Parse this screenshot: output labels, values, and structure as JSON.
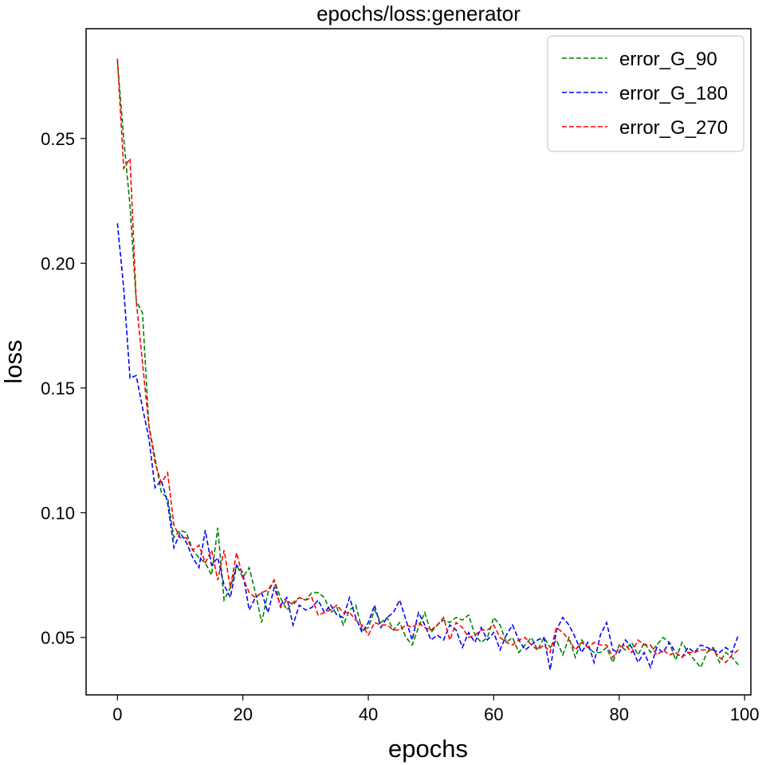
{
  "chart_data": {
    "type": "line",
    "title": "epochs/loss:generator",
    "xlabel": "epochs",
    "ylabel": "loss",
    "xlim": [
      -5,
      101
    ],
    "ylim": [
      0.027,
      0.294
    ],
    "xticks": [
      0,
      20,
      40,
      60,
      80,
      100
    ],
    "yticks": [
      0.05,
      0.1,
      0.15,
      0.2,
      0.25
    ],
    "xtick_labels": [
      "0",
      "20",
      "40",
      "60",
      "80",
      "100"
    ],
    "ytick_labels": [
      "0.05",
      "0.10",
      "0.15",
      "0.20",
      "0.25"
    ],
    "grid": false,
    "legend_position": "top-right",
    "line_style": "dashed",
    "x": [
      0,
      1,
      2,
      3,
      4,
      5,
      6,
      7,
      8,
      9,
      10,
      11,
      12,
      13,
      14,
      15,
      16,
      17,
      18,
      19,
      20,
      21,
      22,
      23,
      24,
      25,
      26,
      27,
      28,
      29,
      30,
      31,
      32,
      33,
      34,
      35,
      36,
      37,
      38,
      39,
      40,
      41,
      42,
      43,
      44,
      45,
      46,
      47,
      48,
      49,
      50,
      51,
      52,
      53,
      54,
      55,
      56,
      57,
      58,
      59,
      60,
      61,
      62,
      63,
      64,
      65,
      66,
      67,
      68,
      69,
      70,
      71,
      72,
      73,
      74,
      75,
      76,
      77,
      78,
      79,
      80,
      81,
      82,
      83,
      84,
      85,
      86,
      87,
      88,
      89,
      90,
      91,
      92,
      93,
      94,
      95,
      96,
      97,
      98,
      99
    ],
    "series": [
      {
        "name": "error_G_90",
        "color": "#008000",
        "values": [
          0.281,
          0.25,
          0.223,
          0.185,
          0.18,
          0.135,
          0.122,
          0.108,
          0.106,
          0.09,
          0.093,
          0.092,
          0.085,
          0.082,
          0.08,
          0.075,
          0.094,
          0.065,
          0.07,
          0.079,
          0.074,
          0.078,
          0.068,
          0.056,
          0.068,
          0.073,
          0.066,
          0.061,
          0.064,
          0.066,
          0.065,
          0.068,
          0.068,
          0.066,
          0.06,
          0.062,
          0.055,
          0.061,
          0.063,
          0.053,
          0.054,
          0.061,
          0.056,
          0.058,
          0.053,
          0.056,
          0.05,
          0.047,
          0.054,
          0.06,
          0.052,
          0.055,
          0.057,
          0.056,
          0.058,
          0.057,
          0.059,
          0.051,
          0.048,
          0.05,
          0.058,
          0.055,
          0.048,
          0.05,
          0.044,
          0.047,
          0.05,
          0.045,
          0.05,
          0.046,
          0.049,
          0.043,
          0.05,
          0.042,
          0.049,
          0.046,
          0.044,
          0.044,
          0.046,
          0.04,
          0.047,
          0.045,
          0.048,
          0.043,
          0.048,
          0.044,
          0.047,
          0.05,
          0.048,
          0.041,
          0.048,
          0.044,
          0.041,
          0.038,
          0.044,
          0.046,
          0.04,
          0.044,
          0.042,
          0.039
        ]
      },
      {
        "name": "error_G_180",
        "color": "#0000ff",
        "values": [
          0.216,
          0.19,
          0.154,
          0.155,
          0.142,
          0.13,
          0.11,
          0.113,
          0.104,
          0.086,
          0.092,
          0.088,
          0.082,
          0.078,
          0.093,
          0.079,
          0.082,
          0.071,
          0.066,
          0.079,
          0.076,
          0.061,
          0.066,
          0.068,
          0.06,
          0.07,
          0.063,
          0.066,
          0.055,
          0.063,
          0.061,
          0.062,
          0.065,
          0.06,
          0.063,
          0.059,
          0.058,
          0.066,
          0.058,
          0.052,
          0.056,
          0.063,
          0.054,
          0.058,
          0.06,
          0.065,
          0.057,
          0.049,
          0.06,
          0.055,
          0.049,
          0.051,
          0.049,
          0.055,
          0.053,
          0.046,
          0.052,
          0.048,
          0.054,
          0.049,
          0.052,
          0.045,
          0.051,
          0.055,
          0.049,
          0.045,
          0.047,
          0.049,
          0.05,
          0.037,
          0.053,
          0.058,
          0.055,
          0.05,
          0.044,
          0.048,
          0.04,
          0.051,
          0.056,
          0.045,
          0.044,
          0.049,
          0.046,
          0.04,
          0.044,
          0.038,
          0.046,
          0.044,
          0.048,
          0.044,
          0.042,
          0.046,
          0.044,
          0.047,
          0.046,
          0.045,
          0.044,
          0.046,
          0.044,
          0.051
        ]
      },
      {
        "name": "error_G_270",
        "color": "#ff0000",
        "values": [
          0.282,
          0.238,
          0.242,
          0.185,
          0.16,
          0.135,
          0.12,
          0.112,
          0.116,
          0.095,
          0.09,
          0.09,
          0.085,
          0.087,
          0.08,
          0.085,
          0.073,
          0.085,
          0.07,
          0.084,
          0.074,
          0.068,
          0.066,
          0.068,
          0.069,
          0.073,
          0.062,
          0.065,
          0.063,
          0.066,
          0.065,
          0.066,
          0.059,
          0.06,
          0.061,
          0.063,
          0.06,
          0.06,
          0.057,
          0.055,
          0.051,
          0.056,
          0.055,
          0.055,
          0.053,
          0.053,
          0.055,
          0.054,
          0.056,
          0.054,
          0.053,
          0.055,
          0.058,
          0.049,
          0.056,
          0.054,
          0.05,
          0.051,
          0.053,
          0.053,
          0.055,
          0.05,
          0.048,
          0.047,
          0.049,
          0.05,
          0.047,
          0.045,
          0.047,
          0.044,
          0.054,
          0.052,
          0.049,
          0.045,
          0.048,
          0.046,
          0.048,
          0.047,
          0.047,
          0.042,
          0.046,
          0.047,
          0.044,
          0.049,
          0.047,
          0.047,
          0.043,
          0.045,
          0.043,
          0.044,
          0.042,
          0.044,
          0.044,
          0.045,
          0.045,
          0.045,
          0.042,
          0.04,
          0.043,
          0.045
        ]
      }
    ]
  }
}
